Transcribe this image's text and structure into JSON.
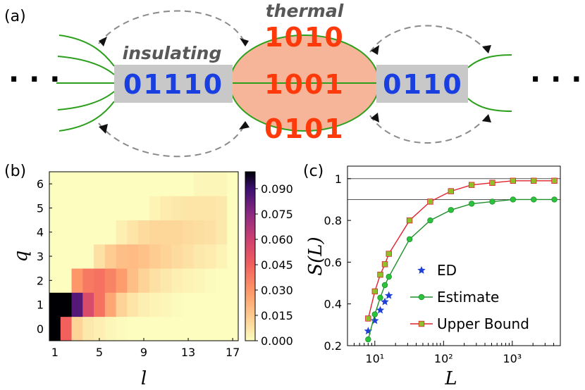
{
  "panel_a": {
    "label": "(a)",
    "thermal_label": "thermal",
    "insulating_label": "insulating",
    "left_bits": "01110",
    "right_bits": "0110",
    "thermal_bits": [
      "1010",
      "1001",
      "0101"
    ],
    "ellipsis": "· · ·",
    "colors": {
      "insulating_box": "#c8c8c8",
      "thermal_fill": "#f6b598",
      "field_lines": "#2ca01c",
      "blue_bits": "#1a3fe0",
      "red_bits": "#ff3a0a",
      "arrows": "#808080"
    }
  },
  "chart_data": [
    {
      "panel": "(b)",
      "type": "heatmap",
      "xlabel": "l",
      "ylabel": "q",
      "x_ticks": [
        "1",
        "5",
        "9",
        "13",
        "17"
      ],
      "y_ticks": [
        "0",
        "1",
        "2",
        "3",
        "4",
        "5",
        "6"
      ],
      "colorbar_ticks": [
        "0.000",
        "0.015",
        "0.030",
        "0.045",
        "0.060",
        "0.075",
        "0.090"
      ],
      "colorbar_range": [
        0,
        0.1
      ],
      "colormap": "magma_r",
      "x_range": [
        1,
        17
      ],
      "y_range": [
        0,
        6
      ],
      "values": [
        [
          0.1,
          0.045,
          0.012,
          0.006,
          0.004,
          0.002,
          0.001,
          0,
          0,
          0,
          0,
          0,
          0,
          0,
          0,
          0,
          0
        ],
        [
          0.1,
          0.1,
          0.085,
          0.055,
          0.04,
          0.025,
          0.012,
          0.007,
          0.004,
          0.003,
          0.002,
          0.001,
          0,
          0,
          0,
          0,
          0
        ],
        [
          0,
          0,
          0.03,
          0.038,
          0.04,
          0.035,
          0.028,
          0.018,
          0.012,
          0.008,
          0.006,
          0.004,
          0.003,
          0.002,
          0.001,
          0,
          0
        ],
        [
          0,
          0,
          0,
          0,
          0.008,
          0.014,
          0.018,
          0.019,
          0.017,
          0.014,
          0.012,
          0.01,
          0.008,
          0.006,
          0.005,
          0.003,
          0
        ],
        [
          0,
          0,
          0,
          0,
          0,
          0,
          0.004,
          0.007,
          0.01,
          0.011,
          0.011,
          0.011,
          0.01,
          0.009,
          0.008,
          0.006,
          0
        ],
        [
          0,
          0,
          0,
          0,
          0,
          0,
          0,
          0,
          0,
          0.003,
          0.005,
          0.006,
          0.007,
          0.007,
          0.007,
          0.006,
          0
        ],
        [
          0,
          0,
          0,
          0,
          0,
          0,
          0,
          0,
          0,
          0,
          0,
          0,
          0,
          0.002,
          0.002,
          0.002,
          0
        ]
      ]
    },
    {
      "panel": "(c)",
      "type": "line",
      "xlabel": "L",
      "ylabel": "S(L)",
      "x_scale": "log",
      "x_range": [
        4,
        5000
      ],
      "y_range": [
        0.2,
        1.06
      ],
      "x_ticks": [
        "10¹",
        "10²",
        "10³"
      ],
      "y_ticks": [
        "0.2",
        "0.4",
        "0.6",
        "0.8",
        "1"
      ],
      "reference_lines": [
        1.0,
        0.9
      ],
      "legend_position": "lower-right",
      "series": [
        {
          "name": "ED",
          "marker": "star",
          "color": "#1f3fd8",
          "x": [
            8,
            10,
            12,
            14,
            16
          ],
          "y": [
            0.27,
            0.32,
            0.37,
            0.41,
            0.44
          ]
        },
        {
          "name": "Estimate",
          "marker": "circle",
          "color": "#2cc33c",
          "line_color": "#1f8f2a",
          "x": [
            8,
            10,
            12,
            14,
            16,
            32,
            64,
            128,
            256,
            512,
            1024,
            2048,
            4096
          ],
          "y": [
            0.23,
            0.35,
            0.43,
            0.49,
            0.53,
            0.71,
            0.8,
            0.85,
            0.88,
            0.89,
            0.9,
            0.9,
            0.9
          ]
        },
        {
          "name": "Upper Bound",
          "marker": "square",
          "color": "#8fc02a",
          "line_color": "#e0202a",
          "x": [
            8,
            10,
            12,
            14,
            16,
            32,
            64,
            128,
            256,
            512,
            1024,
            2048,
            4096
          ],
          "y": [
            0.33,
            0.46,
            0.54,
            0.59,
            0.64,
            0.8,
            0.89,
            0.94,
            0.97,
            0.98,
            0.99,
            0.99,
            0.99
          ]
        }
      ]
    }
  ]
}
